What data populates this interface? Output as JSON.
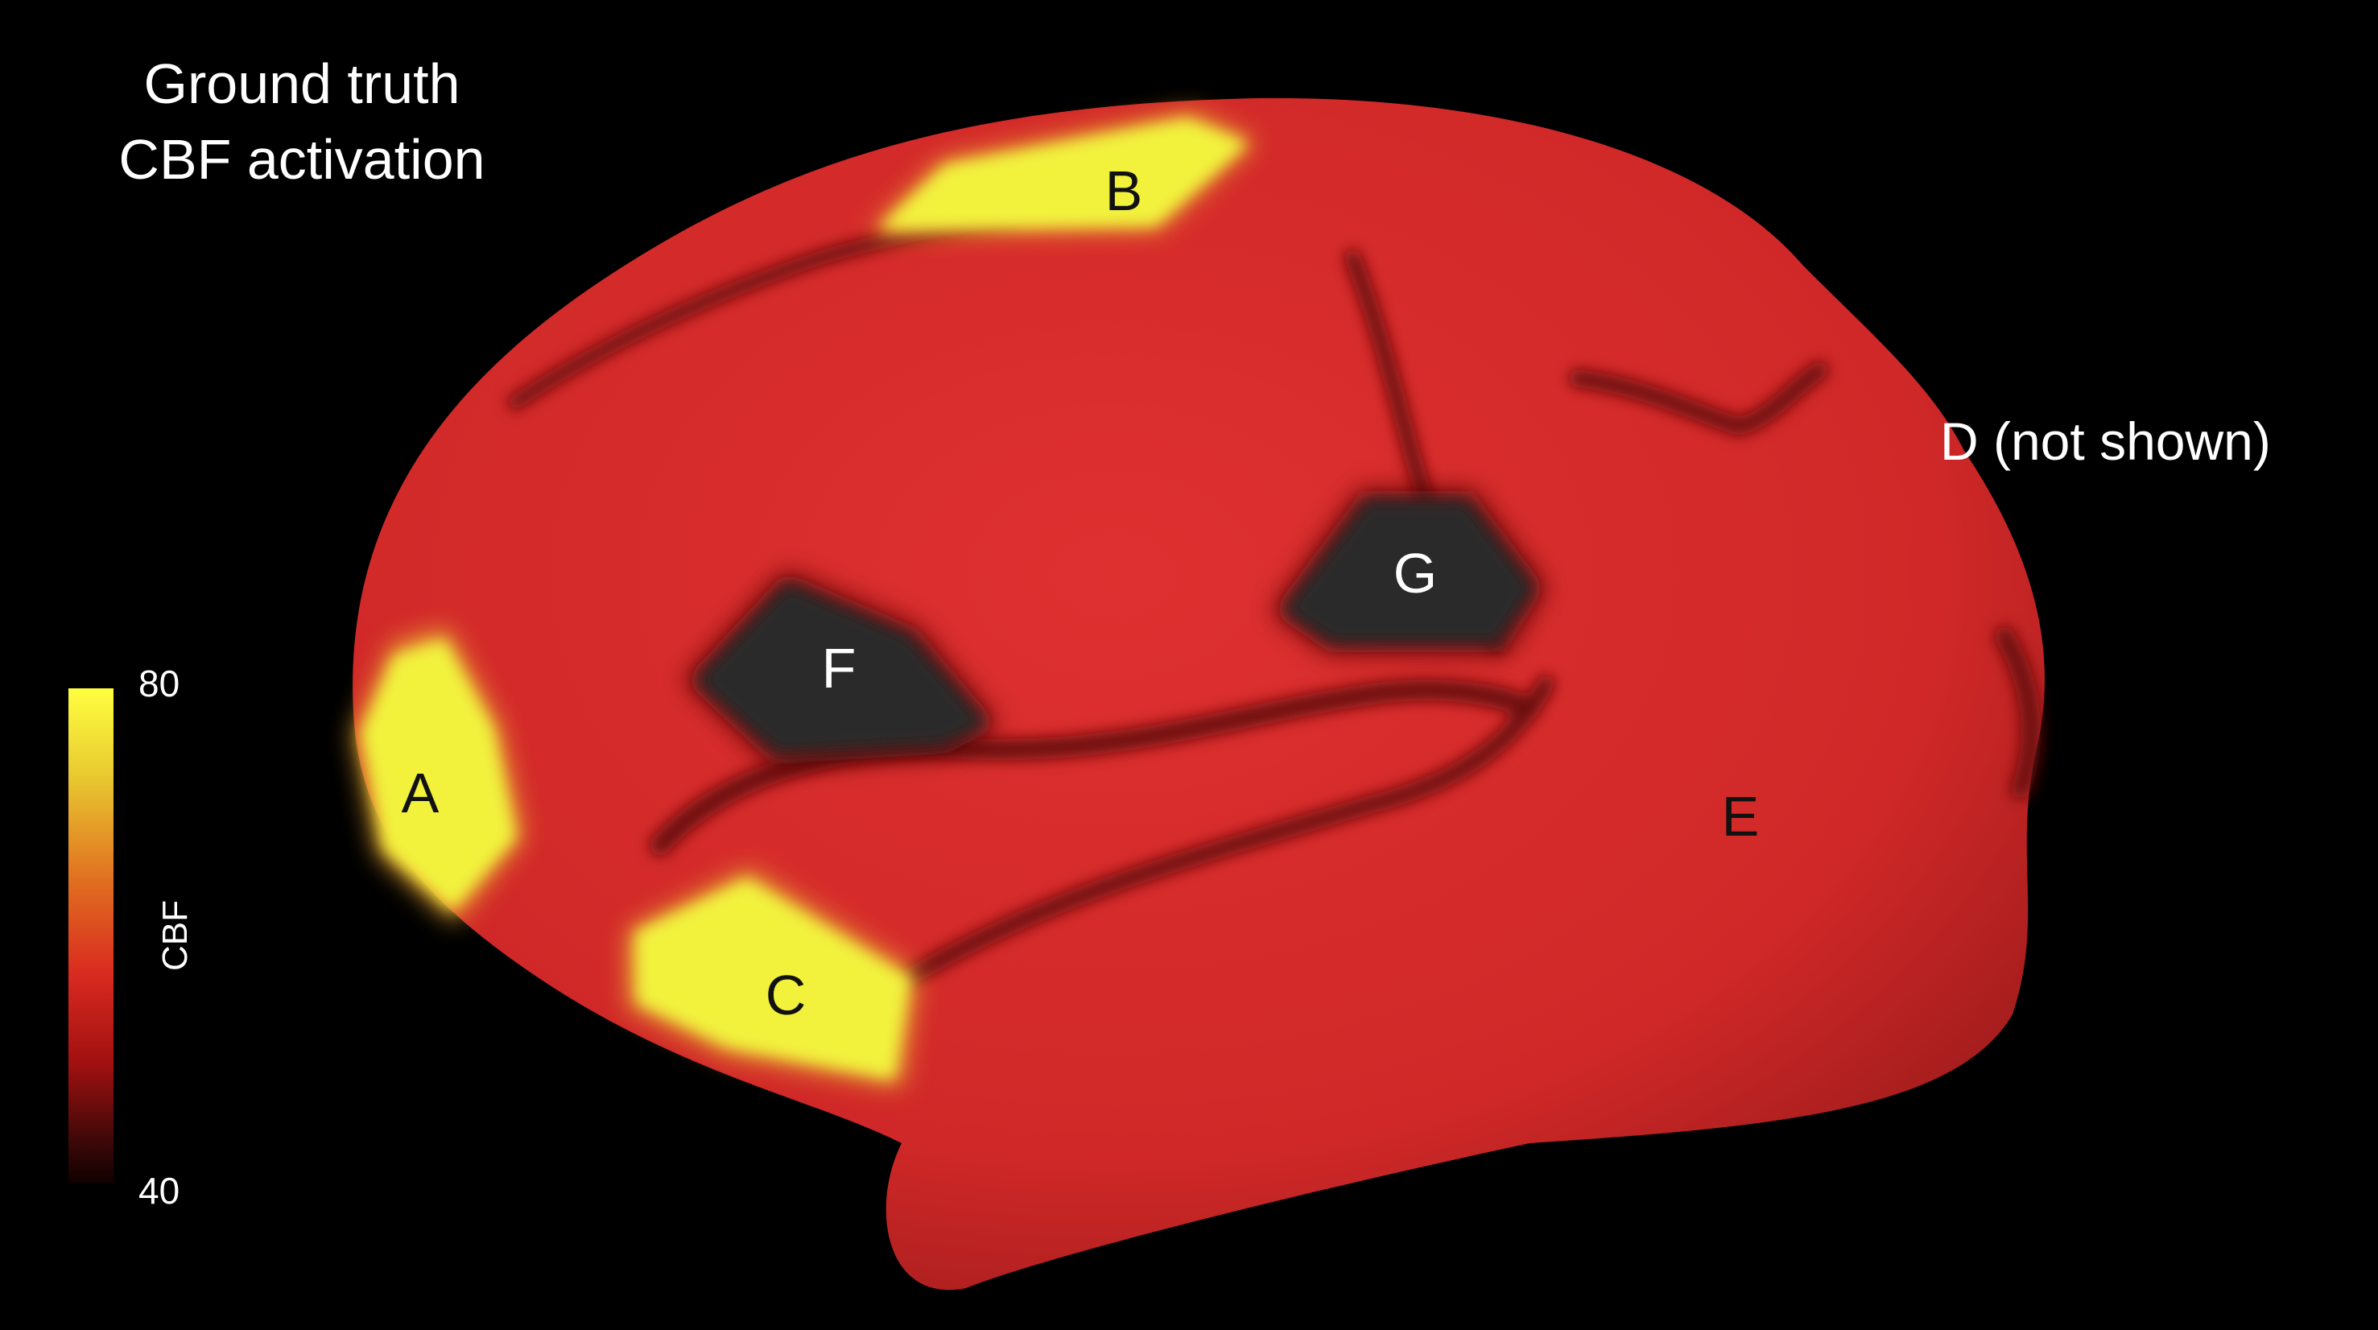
{
  "title": {
    "line1": "Ground truth",
    "line2": "CBF activation"
  },
  "colorbar": {
    "label": "CBF",
    "max": "80",
    "min": "40",
    "colormap": [
      "#100000",
      "#a01010",
      "#d82a20",
      "#e06a20",
      "#ffff40"
    ]
  },
  "colors": {
    "baseline": "#d42a2a",
    "activation": "#f2f23c",
    "deactivation": "#2a2a2a",
    "background": "#000000"
  },
  "regions": {
    "A": {
      "label": "A",
      "state": "activation"
    },
    "B": {
      "label": "B",
      "state": "activation"
    },
    "C": {
      "label": "C",
      "state": "activation"
    },
    "E": {
      "label": "E",
      "state": "baseline"
    },
    "F": {
      "label": "F",
      "state": "deactivation"
    },
    "G": {
      "label": "G",
      "state": "deactivation"
    }
  },
  "note": "D (not shown)"
}
